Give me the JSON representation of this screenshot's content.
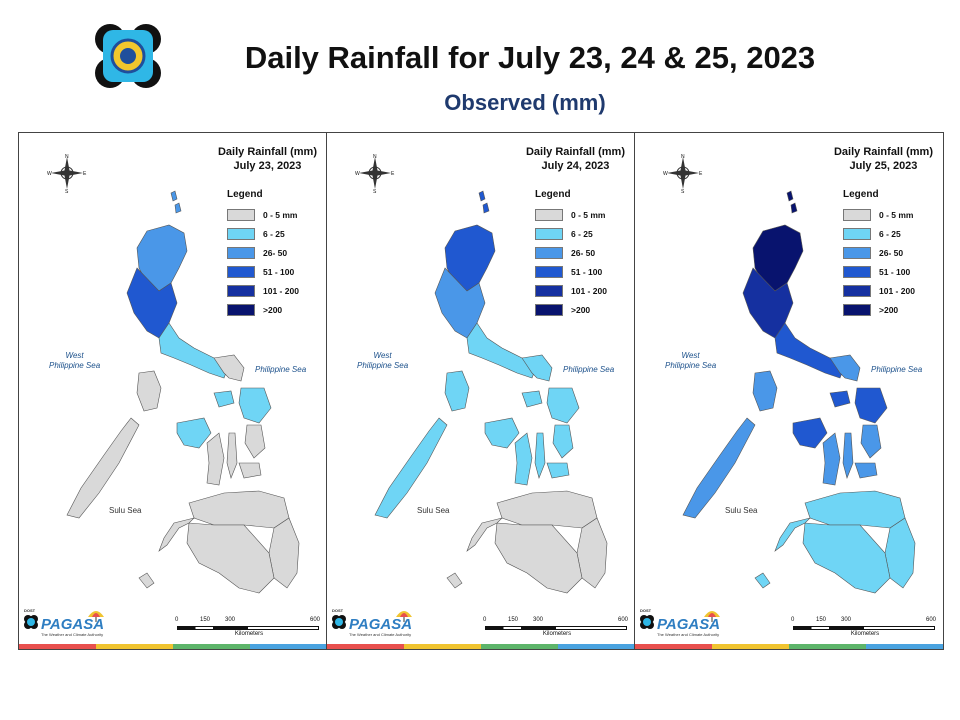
{
  "header": {
    "title": "Daily Rainfall for July 23, 24 & 25, 2023",
    "subtitle": "Observed (mm)"
  },
  "legend": {
    "title": "Legend",
    "classes": [
      {
        "label": "0 - 5 mm",
        "color": "#d9d9d9"
      },
      {
        "label": "6 - 25",
        "color": "#6fd5f5"
      },
      {
        "label": "26- 50",
        "color": "#4a97e8"
      },
      {
        "label": "51 - 100",
        "color": "#2058d0"
      },
      {
        "label": "101 - 200",
        "color": "#1530a0"
      },
      {
        "label": ">200",
        "color": "#08136e"
      }
    ]
  },
  "panels": [
    {
      "title_line1": "Daily Rainfall (mm)",
      "title_line2": "July 23, 2023",
      "north_colors": [
        "#4a97e8",
        "#2058d0",
        "#6fd5f5",
        "#d9d9d9"
      ]
    },
    {
      "title_line1": "Daily Rainfall (mm)",
      "title_line2": "July 24, 2023",
      "north_colors": [
        "#2058d0",
        "#4a97e8",
        "#6fd5f5",
        "#6fd5f5"
      ]
    },
    {
      "title_line1": "Daily Rainfall (mm)",
      "title_line2": "July 25, 2023",
      "north_colors": [
        "#08136e",
        "#1530a0",
        "#2058d0",
        "#4a97e8"
      ]
    }
  ],
  "map_labels": {
    "west_sea_1": "West",
    "west_sea_2": "Philippine Sea",
    "east_sea": "Philippine Sea",
    "sulu_sea": "Sulu Sea"
  },
  "compass": {
    "n": "N",
    "s": "S",
    "e": "E",
    "w": "W"
  },
  "scale": {
    "ticks": [
      "0",
      "150",
      "300",
      "600"
    ],
    "unit": "Kilometers"
  },
  "branding": {
    "dost": "DOST",
    "pagasa_small": "PAGASA",
    "pagasa": "PAGASA",
    "tagline": "The Weather and Climate Authority"
  },
  "strip_colors": [
    "#e8504e",
    "#f0c430",
    "#5db56a",
    "#4aa3e0"
  ]
}
